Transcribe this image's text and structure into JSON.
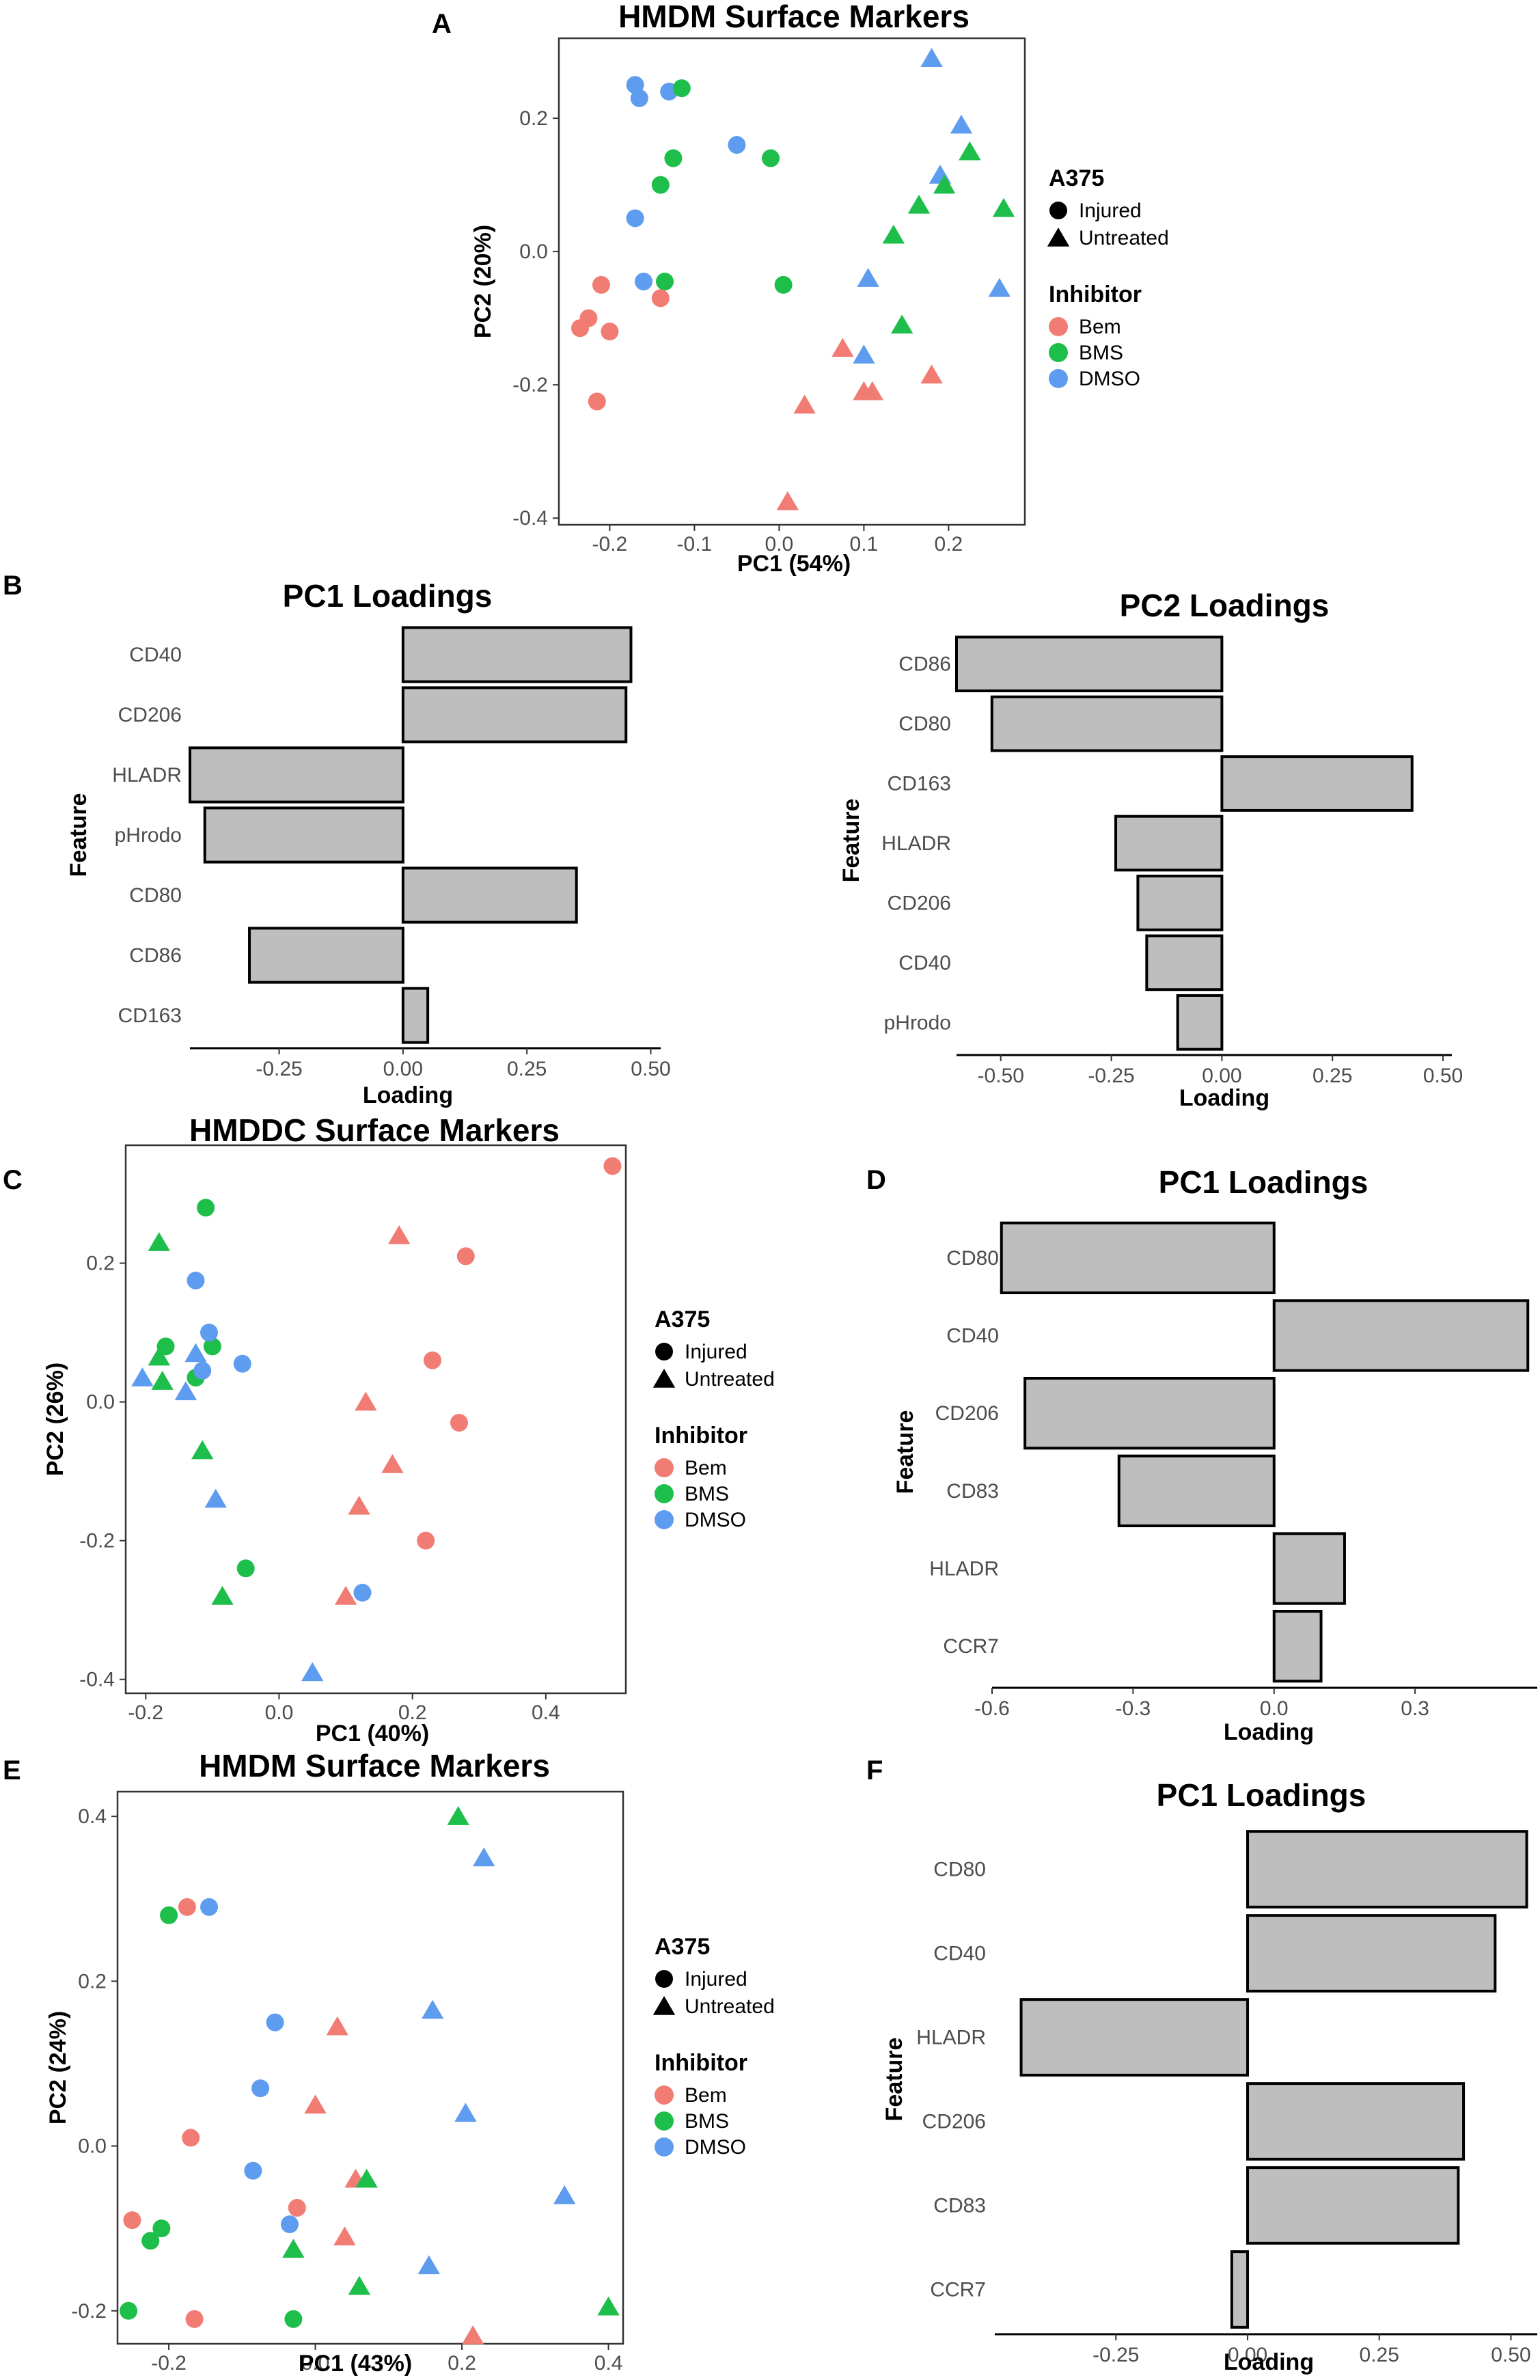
{
  "figure_labels": {
    "A": "A",
    "B": "B",
    "C": "C",
    "D": "D",
    "E": "E",
    "F": "F"
  },
  "colors": {
    "Bem": "#F07C73",
    "BMS": "#1DBE4A",
    "DMSO": "#5E9CF0",
    "bar_fill": "#BEBEBE",
    "bar_stroke": "#000000"
  },
  "legend": {
    "shape_title": "A375",
    "shapes": [
      {
        "label": "Injured",
        "shape": "circle"
      },
      {
        "label": "Untreated",
        "shape": "triangle"
      }
    ],
    "color_title": "Inhibitor",
    "groups": [
      "Bem",
      "BMS",
      "DMSO"
    ]
  },
  "chart_data": [
    {
      "id": "A",
      "type": "scatter",
      "title": "HMDM Surface Markers",
      "xlabel": "PC1 (54%)",
      "ylabel": "PC2 (20%)",
      "xlim": [
        -0.26,
        0.29
      ],
      "ylim": [
        -0.41,
        0.32
      ],
      "xticks": [
        -0.2,
        -0.1,
        0.0,
        0.1,
        0.2
      ],
      "xtick_labels": [
        "-0.2",
        "-0.1",
        "0.0",
        "0.1",
        "0.2"
      ],
      "yticks": [
        -0.4,
        -0.2,
        0.0,
        0.2
      ],
      "ytick_labels": [
        "-0.4",
        "-0.2",
        "0.0",
        "0.2"
      ],
      "points": [
        {
          "x": -0.17,
          "y": 0.25,
          "group": "DMSO",
          "shape": "circle"
        },
        {
          "x": -0.165,
          "y": 0.23,
          "group": "DMSO",
          "shape": "circle"
        },
        {
          "x": -0.13,
          "y": 0.24,
          "group": "DMSO",
          "shape": "circle"
        },
        {
          "x": -0.05,
          "y": 0.16,
          "group": "DMSO",
          "shape": "circle"
        },
        {
          "x": -0.17,
          "y": 0.05,
          "group": "DMSO",
          "shape": "circle"
        },
        {
          "x": -0.16,
          "y": -0.045,
          "group": "DMSO",
          "shape": "circle"
        },
        {
          "x": -0.115,
          "y": 0.245,
          "group": "BMS",
          "shape": "circle"
        },
        {
          "x": -0.125,
          "y": 0.14,
          "group": "BMS",
          "shape": "circle"
        },
        {
          "x": -0.14,
          "y": 0.1,
          "group": "BMS",
          "shape": "circle"
        },
        {
          "x": -0.01,
          "y": 0.14,
          "group": "BMS",
          "shape": "circle"
        },
        {
          "x": -0.135,
          "y": -0.045,
          "group": "BMS",
          "shape": "circle"
        },
        {
          "x": 0.005,
          "y": -0.05,
          "group": "BMS",
          "shape": "circle"
        },
        {
          "x": -0.21,
          "y": -0.05,
          "group": "Bem",
          "shape": "circle"
        },
        {
          "x": -0.225,
          "y": -0.1,
          "group": "Bem",
          "shape": "circle"
        },
        {
          "x": -0.235,
          "y": -0.115,
          "group": "Bem",
          "shape": "circle"
        },
        {
          "x": -0.2,
          "y": -0.12,
          "group": "Bem",
          "shape": "circle"
        },
        {
          "x": -0.14,
          "y": -0.07,
          "group": "Bem",
          "shape": "circle"
        },
        {
          "x": -0.215,
          "y": -0.225,
          "group": "Bem",
          "shape": "circle"
        },
        {
          "x": 0.18,
          "y": 0.29,
          "group": "DMSO",
          "shape": "triangle"
        },
        {
          "x": 0.215,
          "y": 0.19,
          "group": "DMSO",
          "shape": "triangle"
        },
        {
          "x": 0.19,
          "y": 0.115,
          "group": "DMSO",
          "shape": "triangle"
        },
        {
          "x": 0.105,
          "y": -0.04,
          "group": "DMSO",
          "shape": "triangle"
        },
        {
          "x": 0.26,
          "y": -0.055,
          "group": "DMSO",
          "shape": "triangle"
        },
        {
          "x": 0.1,
          "y": -0.155,
          "group": "DMSO",
          "shape": "triangle"
        },
        {
          "x": 0.225,
          "y": 0.15,
          "group": "BMS",
          "shape": "triangle"
        },
        {
          "x": 0.195,
          "y": 0.1,
          "group": "BMS",
          "shape": "triangle"
        },
        {
          "x": 0.165,
          "y": 0.07,
          "group": "BMS",
          "shape": "triangle"
        },
        {
          "x": 0.265,
          "y": 0.065,
          "group": "BMS",
          "shape": "triangle"
        },
        {
          "x": 0.135,
          "y": 0.025,
          "group": "BMS",
          "shape": "triangle"
        },
        {
          "x": 0.145,
          "y": -0.11,
          "group": "BMS",
          "shape": "triangle"
        },
        {
          "x": 0.075,
          "y": -0.145,
          "group": "Bem",
          "shape": "triangle"
        },
        {
          "x": 0.18,
          "y": -0.185,
          "group": "Bem",
          "shape": "triangle"
        },
        {
          "x": 0.1,
          "y": -0.21,
          "group": "Bem",
          "shape": "triangle"
        },
        {
          "x": 0.11,
          "y": -0.21,
          "group": "Bem",
          "shape": "triangle"
        },
        {
          "x": 0.03,
          "y": -0.23,
          "group": "Bem",
          "shape": "triangle"
        },
        {
          "x": 0.01,
          "y": -0.375,
          "group": "Bem",
          "shape": "triangle"
        }
      ]
    },
    {
      "id": "B1",
      "type": "bar",
      "orientation": "horizontal",
      "title": "PC1 Loadings",
      "xlabel": "Loading",
      "ylabel": "Feature",
      "xlim": [
        -0.43,
        0.52
      ],
      "xticks": [
        -0.25,
        0.0,
        0.25,
        0.5
      ],
      "xtick_labels": [
        "-0.25",
        "0.00",
        "0.25",
        "0.50"
      ],
      "categories": [
        "CD40",
        "CD206",
        "HLADR",
        "pHrodo",
        "CD80",
        "CD86",
        "CD163"
      ],
      "values": [
        0.46,
        0.45,
        -0.43,
        -0.4,
        0.35,
        -0.31,
        0.05
      ]
    },
    {
      "id": "B2",
      "type": "bar",
      "orientation": "horizontal",
      "title": "PC2 Loadings",
      "xlabel": "Loading",
      "ylabel": "Feature",
      "xlim": [
        -0.6,
        0.52
      ],
      "xticks": [
        -0.5,
        -0.25,
        0.0,
        0.25,
        0.5
      ],
      "xtick_labels": [
        "-0.50",
        "-0.25",
        "0.00",
        "0.25",
        "0.50"
      ],
      "categories": [
        "CD86",
        "CD80",
        "CD163",
        "HLADR",
        "CD206",
        "CD40",
        "pHrodo"
      ],
      "values": [
        -0.6,
        -0.52,
        0.43,
        -0.24,
        -0.19,
        -0.17,
        -0.1
      ]
    },
    {
      "id": "C",
      "type": "scatter",
      "title": "HMDDC Surface Markers",
      "xlabel": "PC1 (40%)",
      "ylabel": "PC2 (26%)",
      "xlim": [
        -0.23,
        0.52
      ],
      "ylim": [
        -0.42,
        0.37
      ],
      "xticks": [
        -0.2,
        0.0,
        0.2,
        0.4
      ],
      "xtick_labels": [
        "-0.2",
        "0.0",
        "0.2",
        "0.4"
      ],
      "yticks": [
        -0.4,
        -0.2,
        0.0,
        0.2
      ],
      "ytick_labels": [
        "-0.4",
        "-0.2",
        "0.0",
        "0.2"
      ],
      "points": [
        {
          "x": 0.5,
          "y": 0.34,
          "group": "Bem",
          "shape": "circle"
        },
        {
          "x": 0.28,
          "y": 0.21,
          "group": "Bem",
          "shape": "circle"
        },
        {
          "x": 0.23,
          "y": 0.06,
          "group": "Bem",
          "shape": "circle"
        },
        {
          "x": 0.27,
          "y": -0.03,
          "group": "Bem",
          "shape": "circle"
        },
        {
          "x": 0.22,
          "y": -0.2,
          "group": "Bem",
          "shape": "circle"
        },
        {
          "x": 0.18,
          "y": 0.24,
          "group": "Bem",
          "shape": "triangle"
        },
        {
          "x": 0.13,
          "y": 0.0,
          "group": "Bem",
          "shape": "triangle"
        },
        {
          "x": 0.17,
          "y": -0.09,
          "group": "Bem",
          "shape": "triangle"
        },
        {
          "x": 0.12,
          "y": -0.15,
          "group": "Bem",
          "shape": "triangle"
        },
        {
          "x": 0.1,
          "y": -0.28,
          "group": "Bem",
          "shape": "triangle"
        },
        {
          "x": -0.11,
          "y": 0.28,
          "group": "BMS",
          "shape": "circle"
        },
        {
          "x": -0.17,
          "y": 0.08,
          "group": "BMS",
          "shape": "circle"
        },
        {
          "x": -0.1,
          "y": 0.08,
          "group": "BMS",
          "shape": "circle"
        },
        {
          "x": -0.125,
          "y": 0.035,
          "group": "BMS",
          "shape": "circle"
        },
        {
          "x": -0.05,
          "y": -0.24,
          "group": "BMS",
          "shape": "circle"
        },
        {
          "x": -0.18,
          "y": 0.23,
          "group": "BMS",
          "shape": "triangle"
        },
        {
          "x": -0.18,
          "y": 0.065,
          "group": "BMS",
          "shape": "triangle"
        },
        {
          "x": -0.175,
          "y": 0.03,
          "group": "BMS",
          "shape": "triangle"
        },
        {
          "x": -0.115,
          "y": -0.07,
          "group": "BMS",
          "shape": "triangle"
        },
        {
          "x": -0.085,
          "y": -0.28,
          "group": "BMS",
          "shape": "triangle"
        },
        {
          "x": -0.125,
          "y": 0.175,
          "group": "DMSO",
          "shape": "circle"
        },
        {
          "x": -0.105,
          "y": 0.1,
          "group": "DMSO",
          "shape": "circle"
        },
        {
          "x": -0.055,
          "y": 0.055,
          "group": "DMSO",
          "shape": "circle"
        },
        {
          "x": -0.115,
          "y": 0.045,
          "group": "DMSO",
          "shape": "circle"
        },
        {
          "x": 0.125,
          "y": -0.275,
          "group": "DMSO",
          "shape": "circle"
        },
        {
          "x": -0.205,
          "y": 0.035,
          "group": "DMSO",
          "shape": "triangle"
        },
        {
          "x": -0.125,
          "y": 0.07,
          "group": "DMSO",
          "shape": "triangle"
        },
        {
          "x": -0.14,
          "y": 0.015,
          "group": "DMSO",
          "shape": "triangle"
        },
        {
          "x": -0.095,
          "y": -0.14,
          "group": "DMSO",
          "shape": "triangle"
        },
        {
          "x": 0.05,
          "y": -0.39,
          "group": "DMSO",
          "shape": "triangle"
        }
      ]
    },
    {
      "id": "D",
      "type": "bar",
      "orientation": "horizontal",
      "title": "PC1 Loadings",
      "xlabel": "Loading",
      "ylabel": "Feature",
      "xlim": [
        -0.6,
        0.56
      ],
      "xticks": [
        -0.6,
        -0.3,
        0.0,
        0.3
      ],
      "xtick_labels": [
        "-0.6",
        "-0.3",
        "0.0",
        "0.3"
      ],
      "categories": [
        "CD80",
        "CD40",
        "CD206",
        "CD83",
        "HLADR",
        "CCR7"
      ],
      "values": [
        -0.58,
        0.54,
        -0.53,
        -0.33,
        0.15,
        0.1
      ]
    },
    {
      "id": "E",
      "type": "scatter",
      "title": "HMDM Surface Markers",
      "xlabel": "PC1 (43%)",
      "ylabel": "PC2 (24%)",
      "xlim": [
        -0.27,
        0.42
      ],
      "ylim": [
        -0.24,
        0.43
      ],
      "xticks": [
        -0.2,
        0.0,
        0.2,
        0.4
      ],
      "xtick_labels": [
        "-0.2",
        "0.0",
        "0.2",
        "0.4"
      ],
      "yticks": [
        -0.2,
        0.0,
        0.2,
        0.4
      ],
      "ytick_labels": [
        "-0.2",
        "0.0",
        "0.2",
        "0.4"
      ],
      "points": [
        {
          "x": -0.2,
          "y": 0.28,
          "group": "BMS",
          "shape": "circle"
        },
        {
          "x": -0.175,
          "y": 0.29,
          "group": "Bem",
          "shape": "circle"
        },
        {
          "x": -0.145,
          "y": 0.29,
          "group": "DMSO",
          "shape": "circle"
        },
        {
          "x": -0.055,
          "y": 0.15,
          "group": "DMSO",
          "shape": "circle"
        },
        {
          "x": -0.075,
          "y": 0.07,
          "group": "DMSO",
          "shape": "circle"
        },
        {
          "x": -0.17,
          "y": 0.01,
          "group": "Bem",
          "shape": "circle"
        },
        {
          "x": -0.085,
          "y": -0.03,
          "group": "DMSO",
          "shape": "circle"
        },
        {
          "x": -0.25,
          "y": -0.09,
          "group": "Bem",
          "shape": "circle"
        },
        {
          "x": -0.21,
          "y": -0.1,
          "group": "BMS",
          "shape": "circle"
        },
        {
          "x": -0.225,
          "y": -0.115,
          "group": "BMS",
          "shape": "circle"
        },
        {
          "x": -0.025,
          "y": -0.075,
          "group": "Bem",
          "shape": "circle"
        },
        {
          "x": -0.035,
          "y": -0.095,
          "group": "DMSO",
          "shape": "circle"
        },
        {
          "x": -0.255,
          "y": -0.2,
          "group": "BMS",
          "shape": "circle"
        },
        {
          "x": -0.165,
          "y": -0.21,
          "group": "Bem",
          "shape": "circle"
        },
        {
          "x": -0.03,
          "y": -0.21,
          "group": "BMS",
          "shape": "circle"
        },
        {
          "x": 0.195,
          "y": 0.4,
          "group": "BMS",
          "shape": "triangle"
        },
        {
          "x": 0.23,
          "y": 0.35,
          "group": "DMSO",
          "shape": "triangle"
        },
        {
          "x": 0.16,
          "y": 0.165,
          "group": "DMSO",
          "shape": "triangle"
        },
        {
          "x": 0.03,
          "y": 0.145,
          "group": "Bem",
          "shape": "triangle"
        },
        {
          "x": 0.0,
          "y": 0.05,
          "group": "Bem",
          "shape": "triangle"
        },
        {
          "x": 0.205,
          "y": 0.04,
          "group": "DMSO",
          "shape": "triangle"
        },
        {
          "x": 0.055,
          "y": -0.04,
          "group": "Bem",
          "shape": "triangle"
        },
        {
          "x": 0.07,
          "y": -0.04,
          "group": "BMS",
          "shape": "triangle"
        },
        {
          "x": 0.34,
          "y": -0.06,
          "group": "DMSO",
          "shape": "triangle"
        },
        {
          "x": 0.04,
          "y": -0.11,
          "group": "Bem",
          "shape": "triangle"
        },
        {
          "x": -0.03,
          "y": -0.125,
          "group": "BMS",
          "shape": "triangle"
        },
        {
          "x": 0.155,
          "y": -0.145,
          "group": "DMSO",
          "shape": "triangle"
        },
        {
          "x": 0.06,
          "y": -0.17,
          "group": "BMS",
          "shape": "triangle"
        },
        {
          "x": 0.4,
          "y": -0.195,
          "group": "BMS",
          "shape": "triangle"
        },
        {
          "x": 0.215,
          "y": -0.23,
          "group": "Bem",
          "shape": "triangle"
        }
      ]
    },
    {
      "id": "F",
      "type": "bar",
      "orientation": "horizontal",
      "title": "PC1 Loadings",
      "xlabel": "Loading",
      "ylabel": "Feature",
      "xlim": [
        -0.48,
        0.55
      ],
      "xticks": [
        -0.25,
        0.0,
        0.25,
        0.5
      ],
      "xtick_labels": [
        "-0.25",
        "0.00",
        "0.25",
        "0.50"
      ],
      "categories": [
        "CD80",
        "CD40",
        "HLADR",
        "CD206",
        "CD83",
        "CCR7"
      ],
      "values": [
        0.53,
        0.47,
        -0.43,
        0.41,
        0.4,
        -0.03
      ]
    }
  ]
}
